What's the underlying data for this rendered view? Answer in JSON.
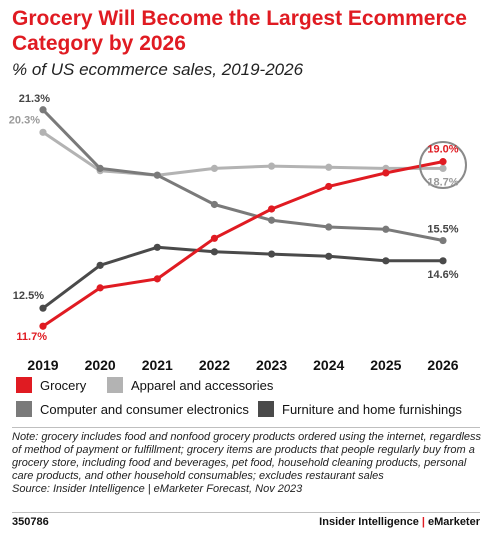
{
  "title": "Grocery Will Become the Largest Ecommerce Category by 2026",
  "subtitle": "% of US ecommerce sales, 2019-2026",
  "chart_data": {
    "type": "line",
    "x": [
      "2019",
      "2020",
      "2021",
      "2022",
      "2023",
      "2024",
      "2025",
      "2026"
    ],
    "ylim": [
      11,
      22
    ],
    "grid": false,
    "legend_placement": "bottom",
    "series": [
      {
        "name": "Grocery",
        "color": "#e01b22",
        "values": [
          11.7,
          13.4,
          13.8,
          15.6,
          16.9,
          17.9,
          18.5,
          19.0
        ],
        "labels": {
          "0": "11.7%",
          "7": "19.0%"
        }
      },
      {
        "name": "Apparel and accessories",
        "color": "#b3b3b3",
        "values": [
          20.3,
          18.6,
          18.4,
          18.7,
          18.8,
          18.75,
          18.7,
          18.7
        ],
        "labels": {
          "0": "20.3%",
          "7": "18.7%"
        }
      },
      {
        "name": "Computer and consumer electronics",
        "color": "#7a7a7a",
        "values": [
          21.3,
          18.7,
          18.4,
          17.1,
          16.4,
          16.1,
          16.0,
          15.5
        ],
        "labels": {
          "0": "21.3%",
          "7": "15.5%"
        }
      },
      {
        "name": "Furniture and home furnishings",
        "color": "#4a4a4a",
        "values": [
          12.5,
          14.4,
          15.2,
          15.0,
          14.9,
          14.8,
          14.6,
          14.6
        ],
        "labels": {
          "0": "12.5%",
          "7": "14.6%"
        }
      }
    ],
    "highlight_circle_index": 7
  },
  "legend": [
    {
      "label": "Grocery",
      "color": "#e01b22"
    },
    {
      "label": "Apparel and accessories",
      "color": "#b3b3b3"
    },
    {
      "label": "Computer and consumer electronics",
      "color": "#7a7a7a"
    },
    {
      "label": "Furniture and home furnishings",
      "color": "#4a4a4a"
    }
  ],
  "note": "Note: grocery includes food and nonfood grocery products ordered using the internet, regardless of method of payment or fulfillment; grocery items are products that people regularly buy from a grocery store, including food and beverages, pet food, household cleaning products, personal care products, and other household consumables; excludes restaurant sales",
  "source": "Source: Insider Intelligence | eMarketer Forecast, Nov 2023",
  "chart_id": "350786",
  "brand": {
    "left": "Insider Intelligence",
    "sep": "|",
    "right": "eMarketer"
  }
}
